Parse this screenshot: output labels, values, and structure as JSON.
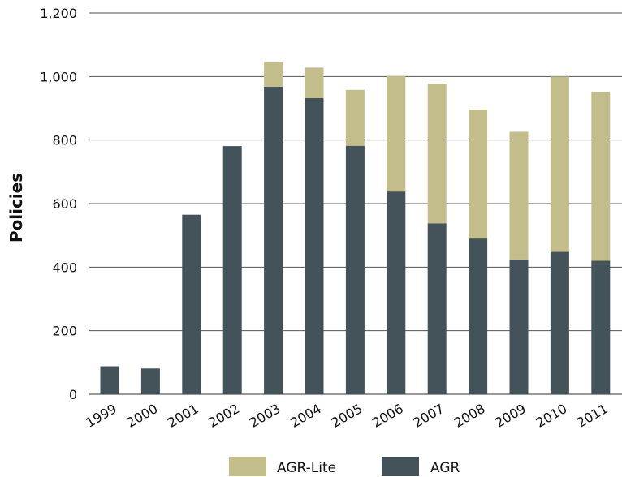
{
  "chart_data": {
    "type": "bar",
    "stacked": true,
    "title": "",
    "xlabel": "",
    "ylabel": "Policies",
    "ylim": [
      0,
      1200
    ],
    "yticks": [
      "0",
      "200",
      "400",
      "600",
      "800",
      "1,000",
      "1,200"
    ],
    "ytick_values": [
      0,
      200,
      400,
      600,
      800,
      1000,
      1200
    ],
    "grid": true,
    "legend_position": "bottom",
    "categories": [
      "1999",
      "2000",
      "2001",
      "2002",
      "2003",
      "2004",
      "2005",
      "2006",
      "2007",
      "2008",
      "2009",
      "2010",
      "2011"
    ],
    "series": [
      {
        "name": "AGR",
        "color": "#44525a",
        "values": [
          88,
          81,
          565,
          781,
          968,
          932,
          782,
          638,
          538,
          490,
          424,
          448,
          420
        ]
      },
      {
        "name": "AGR-Lite",
        "color": "#c3bd8c",
        "values": [
          0,
          0,
          0,
          0,
          77,
          96,
          176,
          364,
          440,
          406,
          402,
          552,
          532
        ]
      }
    ],
    "legend_order": [
      "AGR-Lite",
      "AGR"
    ]
  }
}
